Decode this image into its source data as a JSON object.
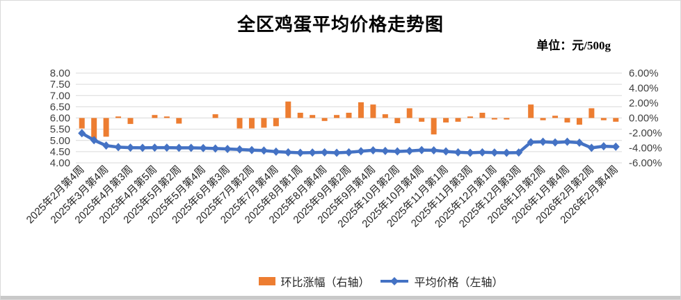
{
  "title": "全区鸡蛋平均价格走势图",
  "unit_label": "单位：元/500g",
  "colors": {
    "bar": "#ED7D31",
    "line": "#4472C4",
    "grid": "#D9D9D9",
    "axis_text": "#404040",
    "category_text": "#262626",
    "border": "#D9D9D9",
    "bottom_strip": "#C9C9C9"
  },
  "legend": [
    {
      "label": "环比涨幅（右轴）",
      "marker": "bar-swatch"
    },
    {
      "label": "平均价格（左轴）",
      "marker": "line-with-diamond"
    }
  ],
  "chart_data": {
    "type": "combo",
    "title": "全区鸡蛋平均价格走势图",
    "unit": "元/500g",
    "n_points": 45,
    "x_label_every": 2,
    "x_tick_labels": [
      "2025年2月第4周",
      "2025年3月第4周",
      "2025年4月第3周",
      "2025年4月第5周",
      "2025年5月第2周",
      "2025年5月第4周",
      "2025年6月第3周",
      "2025年7月第2周",
      "2025年7月第4周",
      "2025年8月第1周",
      "2025年8月第4周",
      "2025年9月第2周",
      "2025年9月第4周",
      "2025年10月第2周",
      "2025年10月第4周",
      "2025年11月第1周",
      "2025年11月第3周",
      "2025年12月第1周",
      "2025年12月第3周",
      "2026年1月第2周",
      "2026年1月第4周",
      "2026年2月第2周",
      "2026年2月第4周"
    ],
    "left_axis": {
      "min": 4.0,
      "max": 8.0,
      "step": 0.5,
      "tick_labels": [
        "8.00",
        "7.50",
        "7.00",
        "6.50",
        "6.00",
        "5.50",
        "5.00",
        "4.50",
        "4.00"
      ]
    },
    "right_axis": {
      "min": -6.0,
      "max": 6.0,
      "step": 2.0,
      "tick_labels": [
        "6.00%",
        "4.00%",
        "2.00%",
        "0.00%",
        "-2.00%",
        "-4.00%",
        "-6.00%"
      ]
    },
    "grid": true,
    "legend_position": "bottom",
    "series": [
      {
        "name": "环比涨幅（右轴）",
        "type": "bar",
        "axis": "right",
        "unit": "%",
        "values": [
          -1.4,
          -3.1,
          -2.5,
          0.2,
          -0.8,
          0,
          0.4,
          0.2,
          -0.75,
          0,
          0,
          0.5,
          0,
          -1.4,
          -1.4,
          -1.3,
          -1.1,
          2.2,
          0.7,
          0.4,
          -0.4,
          0.4,
          0.7,
          2.1,
          1.8,
          0.5,
          -0.7,
          1.3,
          -0.5,
          -2.2,
          -0.6,
          -0.5,
          0.2,
          0.7,
          -0.2,
          -0.2,
          0,
          1.8,
          -0.3,
          0.3,
          -0.6,
          -0.9,
          1.3,
          -0.3,
          -0.5
        ]
      },
      {
        "name": "平均价格（左轴）",
        "type": "line",
        "axis": "left",
        "unit": "元/500g",
        "values": [
          5.32,
          5.01,
          4.77,
          4.7,
          4.68,
          4.67,
          4.68,
          4.68,
          4.67,
          4.67,
          4.66,
          4.64,
          4.62,
          4.6,
          4.57,
          4.55,
          4.5,
          4.47,
          4.45,
          4.46,
          4.47,
          4.45,
          4.47,
          4.52,
          4.56,
          4.53,
          4.51,
          4.53,
          4.57,
          4.56,
          4.51,
          4.47,
          4.45,
          4.47,
          4.46,
          4.45,
          4.46,
          4.92,
          4.94,
          4.91,
          4.94,
          4.9,
          4.67,
          4.74,
          4.72
        ]
      }
    ]
  }
}
